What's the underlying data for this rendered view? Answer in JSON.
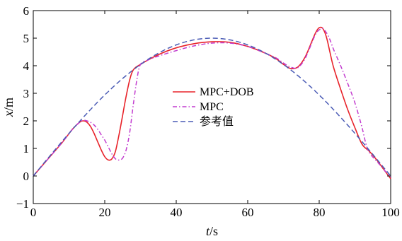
{
  "chart_data": {
    "type": "line",
    "title": "",
    "xlabel": {
      "var": "t",
      "unit": "/s"
    },
    "ylabel": {
      "var": "x",
      "unit": "/m"
    },
    "xlim": [
      0,
      100
    ],
    "ylim": [
      -1,
      6
    ],
    "xticks": [
      0,
      20,
      40,
      60,
      80,
      100
    ],
    "yticks": [
      -1,
      0,
      1,
      2,
      3,
      4,
      5,
      6
    ],
    "grid": false,
    "legend_position": "center",
    "series": [
      {
        "name": "MPC+DOB",
        "color": "#e8232a",
        "style": "solid",
        "x": [
          0,
          4,
          8,
          11,
          13,
          14,
          15,
          16,
          17,
          18,
          19,
          20,
          21,
          22,
          23,
          24,
          25,
          26,
          27,
          28,
          30,
          35,
          40,
          45,
          50,
          55,
          60,
          65,
          68,
          70,
          72,
          74,
          76,
          78,
          79,
          80,
          81,
          82,
          83,
          84,
          86,
          88,
          90,
          92,
          94,
          96,
          98,
          100
        ],
        "y": [
          0,
          0.6,
          1.2,
          1.7,
          1.95,
          2.0,
          1.95,
          1.8,
          1.55,
          1.25,
          0.95,
          0.7,
          0.58,
          0.62,
          0.9,
          1.5,
          2.2,
          2.9,
          3.5,
          3.85,
          4.05,
          4.4,
          4.65,
          4.8,
          4.87,
          4.85,
          4.7,
          4.45,
          4.25,
          4.05,
          3.9,
          3.95,
          4.3,
          4.9,
          5.2,
          5.38,
          5.35,
          5.05,
          4.5,
          3.95,
          3.15,
          2.4,
          1.75,
          1.15,
          0.9,
          0.6,
          0.25,
          -0.1
        ]
      },
      {
        "name": "MPC",
        "color": "#c23ccf",
        "style": "dashdot",
        "x": [
          0,
          4,
          8,
          11,
          13,
          14,
          15,
          16,
          17,
          18,
          19,
          20,
          21,
          22,
          23,
          24,
          25,
          26,
          27,
          28,
          29,
          30,
          32,
          35,
          40,
          45,
          50,
          55,
          60,
          65,
          68,
          70,
          72,
          74,
          76,
          78,
          79,
          80,
          81,
          82,
          83,
          84,
          86,
          88,
          90,
          92,
          93,
          94,
          96,
          98,
          100
        ],
        "y": [
          0,
          0.6,
          1.2,
          1.7,
          1.95,
          2.02,
          2.0,
          1.95,
          1.85,
          1.7,
          1.5,
          1.3,
          1.05,
          0.8,
          0.62,
          0.58,
          0.65,
          0.95,
          1.6,
          2.6,
          3.5,
          4.05,
          4.2,
          4.35,
          4.55,
          4.72,
          4.82,
          4.82,
          4.7,
          4.45,
          4.28,
          4.1,
          3.95,
          3.93,
          4.25,
          4.85,
          5.15,
          5.3,
          5.35,
          5.2,
          4.95,
          4.6,
          4.0,
          3.35,
          2.65,
          1.75,
          1.2,
          0.85,
          0.55,
          0.25,
          -0.05
        ]
      },
      {
        "name": "参考值",
        "color": "#4a5bb5",
        "style": "dashed",
        "function": "x = 5 sin(pi t / 100) for t in [0, 100]"
      }
    ]
  }
}
